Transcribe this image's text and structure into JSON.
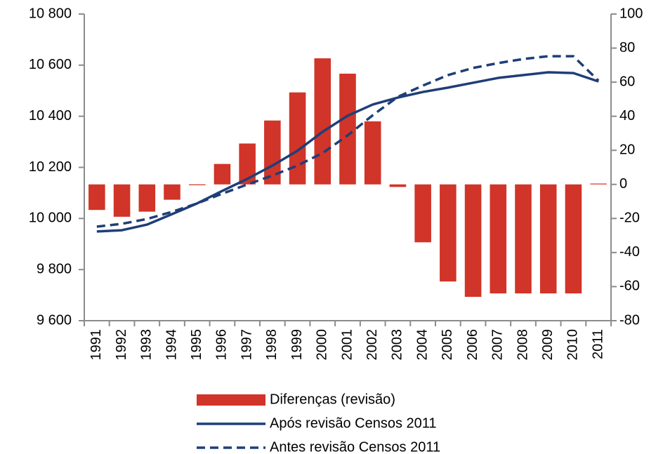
{
  "chart_data": {
    "type": "bar-line",
    "categories": [
      "1991",
      "1992",
      "1993",
      "1994",
      "1995",
      "1996",
      "1997",
      "1998",
      "1999",
      "2000",
      "2001",
      "2002",
      "2003",
      "2004",
      "2005",
      "2006",
      "2007",
      "2008",
      "2009",
      "2010",
      "2011"
    ],
    "ylim": [
      9600,
      10800
    ],
    "yticks": [
      {
        "value": 9600,
        "label": "9 600"
      },
      {
        "value": 9800,
        "label": "9 800"
      },
      {
        "value": 10000,
        "label": "10 000"
      },
      {
        "value": 10200,
        "label": "10 200"
      },
      {
        "value": 10400,
        "label": "10 400"
      },
      {
        "value": 10600,
        "label": "10 600"
      },
      {
        "value": 10800,
        "label": "10 800"
      }
    ],
    "y2lim": [
      -80,
      100
    ],
    "y2ticks": [
      -80,
      -60,
      -40,
      -20,
      0,
      20,
      40,
      60,
      80,
      100
    ],
    "series": [
      {
        "name": "Diferenças (revisão)",
        "type": "bar",
        "axis": "y2",
        "color": "#d13428",
        "values": [
          -15,
          -19,
          -16,
          -9,
          -0.5,
          12,
          24,
          37.5,
          54,
          74,
          65,
          37,
          -1.5,
          -34,
          -57,
          -66,
          -64,
          -64,
          -64,
          -64,
          0.5
        ]
      },
      {
        "name": "Após revisão Censos 2011",
        "type": "line",
        "color": "#1f3e78",
        "dash": false,
        "values": [
          9949,
          9954,
          9976,
          10017,
          10059,
          10108,
          10155,
          10207,
          10265,
          10339,
          10402,
          10446,
          10473,
          10495,
          10512,
          10531,
          10550,
          10561,
          10572,
          10569,
          10536
        ]
      },
      {
        "name": "Antes revisão Censos 2011",
        "type": "line",
        "color": "#1f3e78",
        "dash": true,
        "values": [
          9968,
          9979,
          9998,
          10026,
          10059,
          10097,
          10133,
          10168,
          10207,
          10256,
          10325,
          10404,
          10476,
          10520,
          10561,
          10589,
          10608,
          10624,
          10635,
          10635,
          10539
        ]
      }
    ]
  }
}
